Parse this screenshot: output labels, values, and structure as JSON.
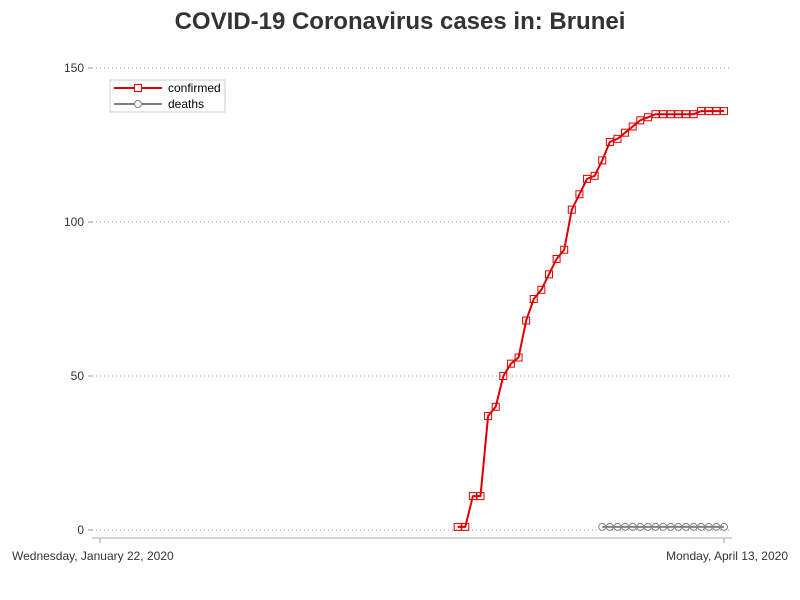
{
  "chart_data": {
    "type": "line",
    "title": "COVID-19 Coronavirus cases in: Brunei",
    "xlabel": "",
    "ylabel": "",
    "x_range": [
      "2020-01-22",
      "2020-04-13"
    ],
    "x_tick_labels": [
      "Wednesday, January 22, 2020",
      "Monday, April 13, 2020"
    ],
    "ylim": [
      0,
      150
    ],
    "y_ticks": [
      0,
      50,
      100,
      150
    ],
    "grid": "horizontal dotted",
    "legend_placement": "top-left",
    "series": [
      {
        "name": "confirmed",
        "color": "#dd0000",
        "marker": "square",
        "dates": [
          "2020-03-09",
          "2020-03-10",
          "2020-03-11",
          "2020-03-12",
          "2020-03-13",
          "2020-03-14",
          "2020-03-15",
          "2020-03-16",
          "2020-03-17",
          "2020-03-18",
          "2020-03-19",
          "2020-03-20",
          "2020-03-21",
          "2020-03-22",
          "2020-03-23",
          "2020-03-24",
          "2020-03-25",
          "2020-03-26",
          "2020-03-27",
          "2020-03-28",
          "2020-03-29",
          "2020-03-30",
          "2020-03-31",
          "2020-04-01",
          "2020-04-02",
          "2020-04-03",
          "2020-04-04",
          "2020-04-05",
          "2020-04-06",
          "2020-04-07",
          "2020-04-08",
          "2020-04-09",
          "2020-04-10",
          "2020-04-11",
          "2020-04-12",
          "2020-04-13"
        ],
        "values": [
          1,
          1,
          11,
          11,
          37,
          40,
          50,
          54,
          56,
          68,
          75,
          78,
          83,
          88,
          91,
          104,
          109,
          114,
          115,
          120,
          126,
          127,
          129,
          131,
          133,
          134,
          135,
          135,
          135,
          135,
          135,
          135,
          136,
          136,
          136,
          136
        ]
      },
      {
        "name": "deaths",
        "color": "#808080",
        "marker": "circle",
        "dates": [
          "2020-03-28",
          "2020-03-29",
          "2020-03-30",
          "2020-03-31",
          "2020-04-01",
          "2020-04-02",
          "2020-04-03",
          "2020-04-04",
          "2020-04-05",
          "2020-04-06",
          "2020-04-07",
          "2020-04-08",
          "2020-04-09",
          "2020-04-10",
          "2020-04-11",
          "2020-04-12",
          "2020-04-13"
        ],
        "values": [
          1,
          1,
          1,
          1,
          1,
          1,
          1,
          1,
          1,
          1,
          1,
          1,
          1,
          1,
          1,
          1,
          1
        ]
      }
    ]
  }
}
